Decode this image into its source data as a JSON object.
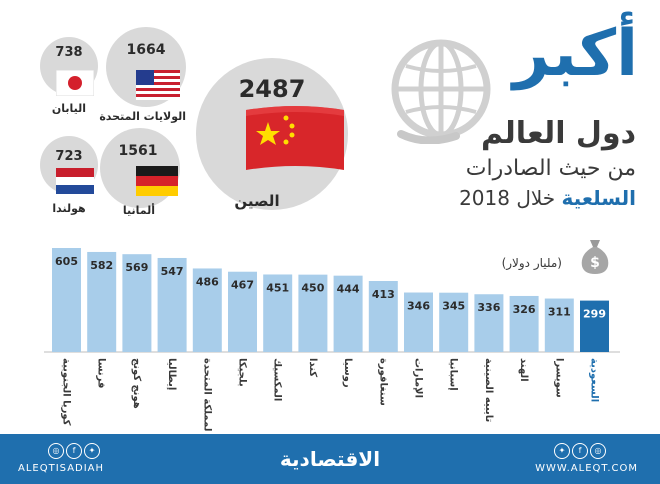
{
  "title": {
    "big": "أكبر",
    "mid": "دول العالم",
    "line1": "من حيث الصادرات",
    "line2_highlight": "السلعية",
    "line2_rest": "خلال 2018"
  },
  "unit_label": "(مليار دولار)",
  "top_countries": [
    {
      "name": "الصين",
      "value": "2487",
      "flag": "china-flag"
    },
    {
      "name": "الولايات المتحدة",
      "value": "1664",
      "flag": "usa-flag"
    },
    {
      "name": "اليابان",
      "value": "738",
      "flag": "japan-flag"
    },
    {
      "name": "ألمانيا",
      "value": "1561",
      "flag": "germany-flag"
    },
    {
      "name": "هولندا",
      "value": "723",
      "flag": "netherlands-flag"
    }
  ],
  "chart_data": {
    "type": "bar",
    "categories": [
      "كوريا الجنوبية",
      "فرنسا",
      "هونج كونج",
      "إيطاليا",
      "المملكة المتحدة",
      "بلجيكا",
      "المكسيك",
      "كندا",
      "روسيا",
      "سنغافورة",
      "الإمارات",
      "إسبانيا",
      "تايبيه الصينية",
      "الهند",
      "سويسرا",
      "السعودية"
    ],
    "values": [
      605,
      582,
      569,
      547,
      486,
      467,
      451,
      450,
      444,
      413,
      346,
      345,
      336,
      326,
      311,
      299
    ],
    "highlight_index": 15,
    "bar_color": "#a8cdea",
    "highlight_color": "#1f6fae",
    "ylim": [
      0,
      605
    ]
  },
  "footer": {
    "logo": "الاقتصادية",
    "handle": "ALEQTISADIAH",
    "website": "WWW.ALEQT.COM"
  }
}
